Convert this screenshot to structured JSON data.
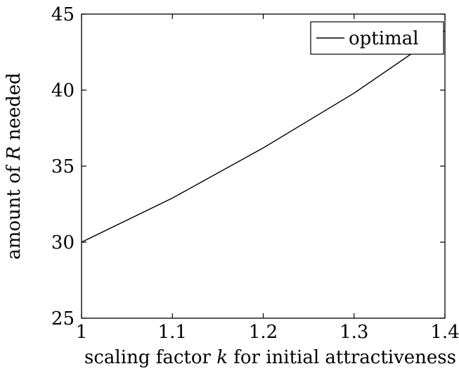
{
  "chart_data": {
    "type": "line",
    "title": "",
    "xlabel": "scaling factor k for initial attractiveness",
    "xlabel_parts": [
      "scaling factor ",
      "k",
      " for initial attractiveness"
    ],
    "ylabel": "amount of R needed",
    "ylabel_parts": [
      "amount of ",
      "R",
      " needed"
    ],
    "xlim": [
      1,
      1.4
    ],
    "ylim": [
      25,
      45
    ],
    "xticks": [
      1,
      1.1,
      1.2,
      1.3,
      1.4
    ],
    "xtick_labels": [
      "1",
      "1.1",
      "1.2",
      "1.3",
      "1.4"
    ],
    "yticks": [
      25,
      30,
      35,
      40,
      45
    ],
    "ytick_labels": [
      "25",
      "30",
      "35",
      "40",
      "45"
    ],
    "grid": false,
    "legend_position": "top-right",
    "series": [
      {
        "name": "optimal",
        "color": "#000000",
        "x": [
          1.0,
          1.1,
          1.2,
          1.3,
          1.4
        ],
        "y": [
          30.0,
          32.9,
          36.2,
          39.8,
          43.9
        ]
      }
    ]
  }
}
